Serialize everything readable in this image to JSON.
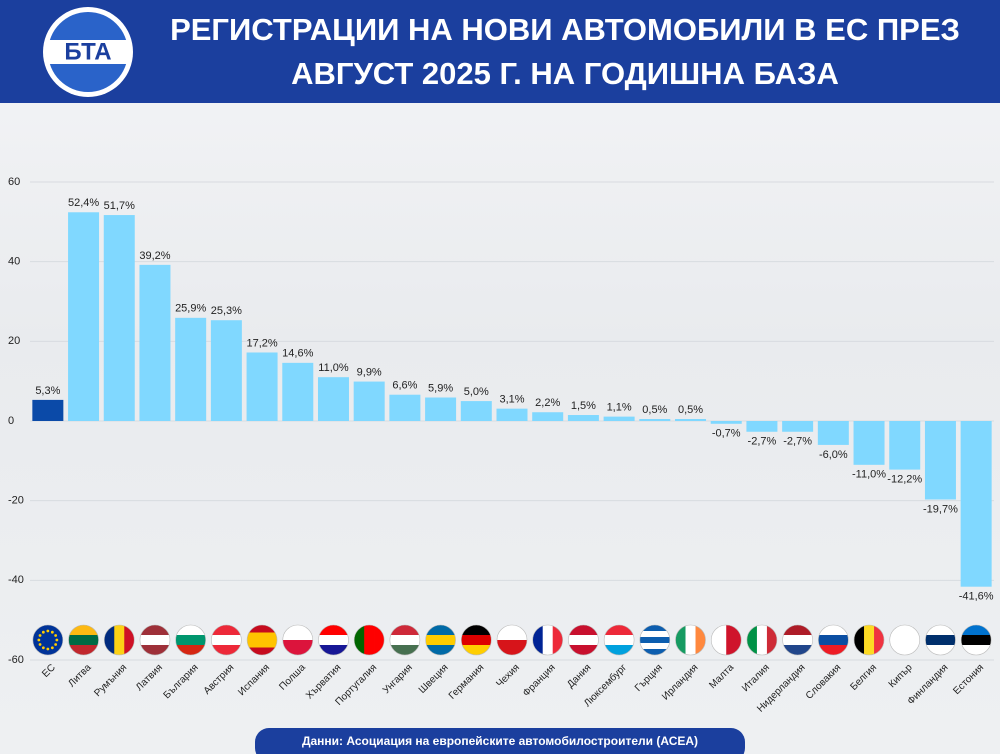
{
  "logo": "БТА",
  "chart_data": {
    "type": "bar",
    "title": "РЕГИСТРАЦИИ НА НОВИ АВТОМОБИЛИ В ЕС ПРЕЗ АВГУСТ 2025 Г. НА ГОДИШНА БАЗА",
    "categories": [
      "ЕС",
      "Литва",
      "Румъния",
      "Латвия",
      "България",
      "Австрия",
      "Испания",
      "Полша",
      "Хърватия",
      "Португалия",
      "Унгария",
      "Швеция",
      "Германия",
      "Чехия",
      "Франция",
      "Дания",
      "Люксембург",
      "Гърция",
      "Ирландия",
      "Малта",
      "Италия",
      "Нидерландия",
      "Словакия",
      "Белгия",
      "Кипър",
      "Финландия",
      "Естония"
    ],
    "values": [
      5.3,
      52.4,
      51.7,
      39.2,
      25.9,
      25.3,
      17.2,
      14.6,
      11.0,
      9.9,
      6.6,
      5.9,
      5.0,
      3.1,
      2.2,
      1.5,
      1.1,
      0.5,
      0.5,
      -0.7,
      -2.7,
      -2.7,
      -6.0,
      -11.0,
      -12.2,
      -19.7,
      -41.6
    ],
    "value_labels": [
      "5,3%",
      "52,4%",
      "51,7%",
      "39,2%",
      "25,9%",
      "25,3%",
      "17,2%",
      "14,6%",
      "11,0%",
      "9,9%",
      "6,6%",
      "5,9%",
      "5,0%",
      "3,1%",
      "2,2%",
      "1,5%",
      "1,1%",
      "0,5%",
      "0,5%",
      "-0,7%",
      "-2,7%",
      "-2,7%",
      "-6,0%",
      "-11,0%",
      "-12,2%",
      "-19,7%",
      "-41,6%"
    ],
    "colors": [
      "#0b4aa8",
      "#80d8ff",
      "#80d8ff",
      "#80d8ff",
      "#80d8ff",
      "#80d8ff",
      "#80d8ff",
      "#80d8ff",
      "#80d8ff",
      "#80d8ff",
      "#80d8ff",
      "#80d8ff",
      "#80d8ff",
      "#80d8ff",
      "#80d8ff",
      "#80d8ff",
      "#80d8ff",
      "#80d8ff",
      "#80d8ff",
      "#80d8ff",
      "#80d8ff",
      "#80d8ff",
      "#80d8ff",
      "#80d8ff",
      "#80d8ff",
      "#80d8ff",
      "#80d8ff"
    ],
    "ylim": [
      -60,
      60
    ],
    "yticks": [
      60,
      40,
      20,
      0,
      -20,
      -40,
      -60
    ],
    "grid": true,
    "source": "Данни: Асоциация на европейските автомобилостроители (АСЕА)"
  }
}
